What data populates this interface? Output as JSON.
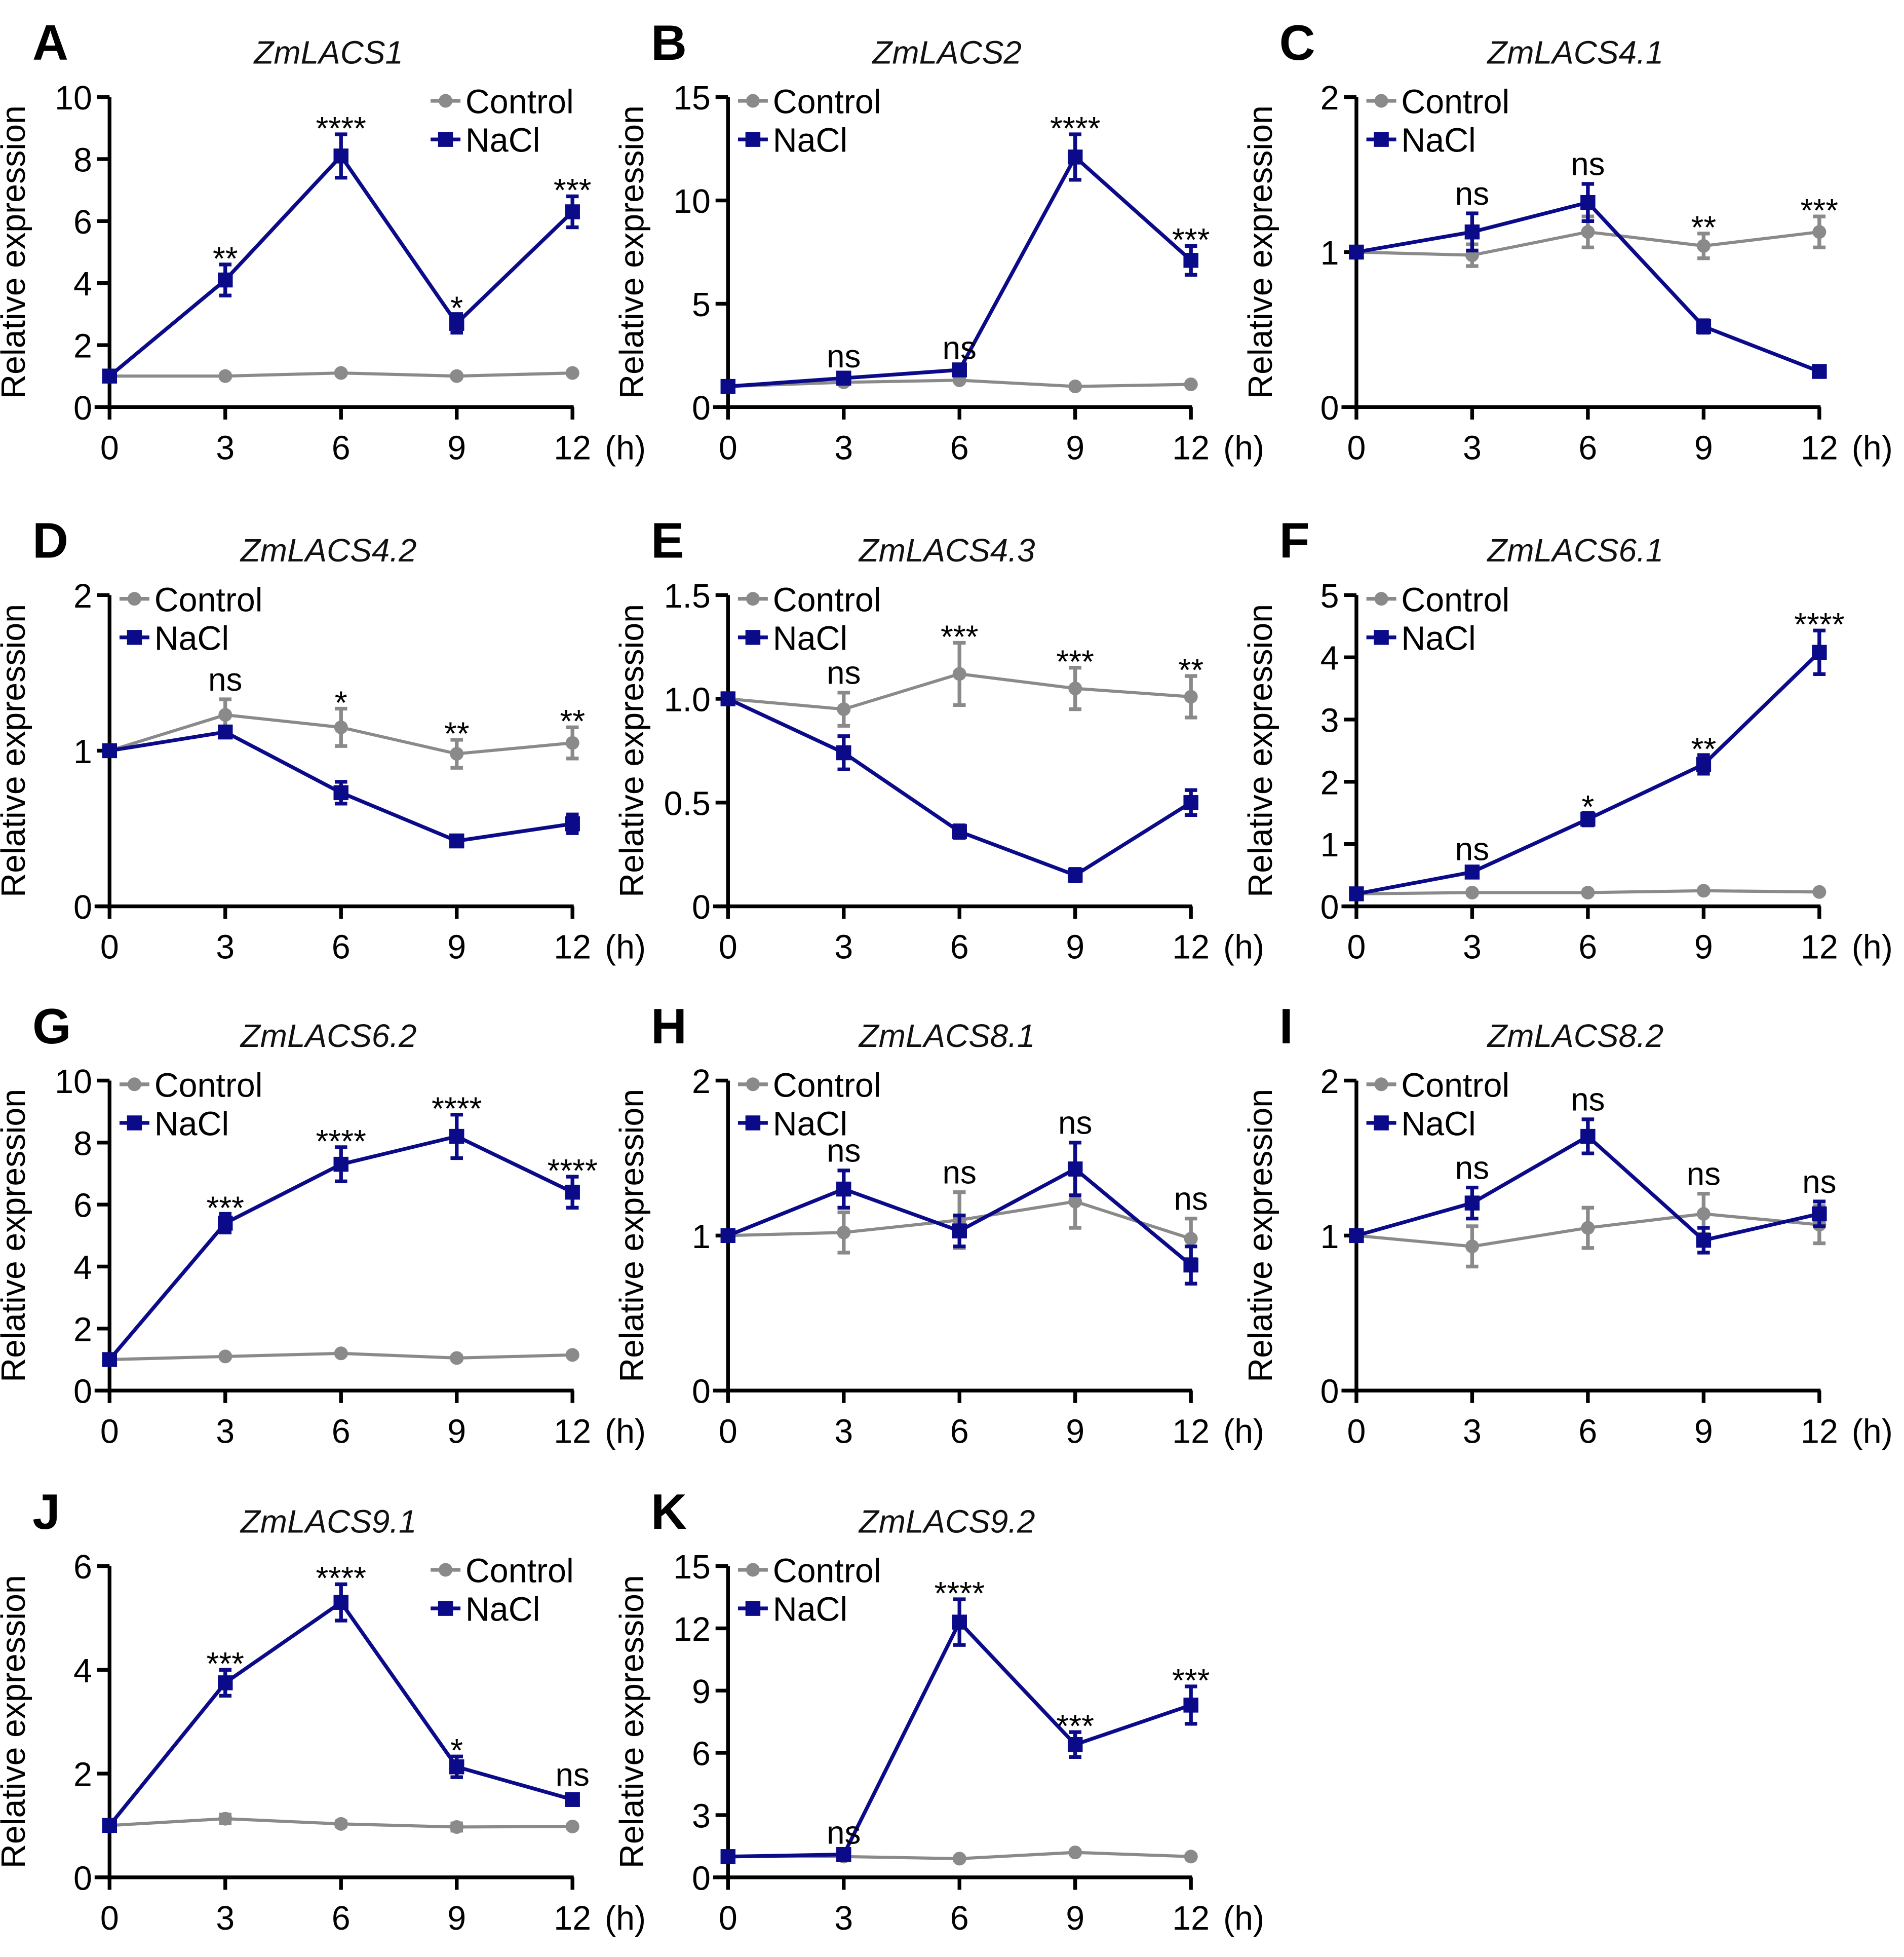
{
  "colors": {
    "control": "#8a8a8a",
    "nacl": "#0b0b8a"
  },
  "chart_data": [
    {
      "type": "line",
      "panel": "A",
      "title": "ZmLACS1",
      "ylabel": "Relative expression",
      "xunit": "(h)",
      "x": [
        0,
        3,
        6,
        9,
        12
      ],
      "ylim": [
        0,
        10
      ],
      "yticks": [
        "0",
        "2",
        "4",
        "6",
        "8",
        "10"
      ],
      "legend": "top-right",
      "series": [
        {
          "name": "Control",
          "values": [
            1,
            1,
            1.1,
            1,
            1.1
          ],
          "err": [
            0,
            0.05,
            0.05,
            0.05,
            0.05
          ]
        },
        {
          "name": "NaCl",
          "values": [
            1,
            4.1,
            8.1,
            2.7,
            6.3
          ],
          "err": [
            0,
            0.5,
            0.7,
            0.3,
            0.5
          ]
        }
      ],
      "sig": [
        "",
        "**",
        "****",
        "*",
        "***"
      ]
    },
    {
      "type": "line",
      "panel": "B",
      "title": "ZmLACS2",
      "ylabel": "Relative expression",
      "xunit": "(h)",
      "x": [
        0,
        3,
        6,
        9,
        12
      ],
      "ylim": [
        0,
        15
      ],
      "yticks": [
        "0",
        "5",
        "10",
        "15"
      ],
      "legend": "top-left",
      "series": [
        {
          "name": "Control",
          "values": [
            1,
            1.2,
            1.3,
            1,
            1.1
          ],
          "err": [
            0,
            0.05,
            0.05,
            0.05,
            0.05
          ]
        },
        {
          "name": "NaCl",
          "values": [
            1,
            1.4,
            1.8,
            12.1,
            7.1
          ],
          "err": [
            0,
            0.1,
            0.1,
            1.1,
            0.7
          ]
        }
      ],
      "sig": [
        "",
        "ns",
        "ns",
        "****",
        "***"
      ]
    },
    {
      "type": "line",
      "panel": "C",
      "title": "ZmLACS4.1",
      "ylabel": "Relative expression",
      "xunit": "(h)",
      "x": [
        0,
        3,
        6,
        9,
        12
      ],
      "ylim": [
        0,
        2
      ],
      "yticks": [
        "0",
        "1",
        "2"
      ],
      "legend": "top-left",
      "series": [
        {
          "name": "Control",
          "values": [
            1,
            0.98,
            1.13,
            1.04,
            1.13
          ],
          "err": [
            0,
            0.07,
            0.1,
            0.08,
            0.1
          ]
        },
        {
          "name": "NaCl",
          "values": [
            1,
            1.13,
            1.32,
            0.52,
            0.23
          ],
          "err": [
            0,
            0.12,
            0.12,
            0.04,
            0.02
          ]
        }
      ],
      "sig": [
        "",
        "ns",
        "ns",
        "**",
        "***"
      ]
    },
    {
      "type": "line",
      "panel": "D",
      "title": "ZmLACS4.2",
      "ylabel": "Relative expression",
      "xunit": "(h)",
      "x": [
        0,
        3,
        6,
        9,
        12
      ],
      "ylim": [
        0,
        2
      ],
      "yticks": [
        "0",
        "1",
        "2"
      ],
      "legend": "top-left",
      "series": [
        {
          "name": "Control",
          "values": [
            1,
            1.23,
            1.15,
            0.98,
            1.05
          ],
          "err": [
            0,
            0.1,
            0.12,
            0.09,
            0.1
          ]
        },
        {
          "name": "NaCl",
          "values": [
            1,
            1.12,
            0.73,
            0.42,
            0.53
          ],
          "err": [
            0,
            0.03,
            0.07,
            0.03,
            0.06
          ]
        }
      ],
      "sig": [
        "",
        "ns",
        "*",
        "**",
        "**"
      ]
    },
    {
      "type": "line",
      "panel": "E",
      "title": "ZmLACS4.3",
      "ylabel": "Relative expression",
      "xunit": "(h)",
      "x": [
        0,
        3,
        6,
        9,
        12
      ],
      "ylim": [
        0,
        1.5
      ],
      "yticks": [
        "0",
        "0.5",
        "1.0",
        "1.5"
      ],
      "legend": "top-left",
      "series": [
        {
          "name": "Control",
          "values": [
            1,
            0.95,
            1.12,
            1.05,
            1.01
          ],
          "err": [
            0,
            0.08,
            0.15,
            0.1,
            0.1
          ]
        },
        {
          "name": "NaCl",
          "values": [
            1,
            0.74,
            0.36,
            0.15,
            0.5
          ],
          "err": [
            0,
            0.08,
            0.03,
            0.03,
            0.06
          ]
        }
      ],
      "sig": [
        "",
        "ns",
        "***",
        "***",
        "**"
      ]
    },
    {
      "type": "line",
      "panel": "F",
      "title": "ZmLACS6.1",
      "ylabel": "Relative expression",
      "xunit": "(h)",
      "x": [
        0,
        3,
        6,
        9,
        12
      ],
      "ylim": [
        0,
        5
      ],
      "yticks": [
        "0",
        "1",
        "2",
        "3",
        "4",
        "5"
      ],
      "legend": "top-left",
      "series": [
        {
          "name": "Control",
          "values": [
            0.2,
            0.22,
            0.22,
            0.25,
            0.23
          ],
          "err": [
            0,
            0.02,
            0.02,
            0.02,
            0.02
          ]
        },
        {
          "name": "NaCl",
          "values": [
            0.2,
            0.55,
            1.4,
            2.28,
            4.08
          ],
          "err": [
            0,
            0.05,
            0.1,
            0.15,
            0.35
          ]
        }
      ],
      "sig": [
        "",
        "ns",
        "*",
        "**",
        "****"
      ]
    },
    {
      "type": "line",
      "panel": "G",
      "title": "ZmLACS6.2",
      "ylabel": "Relative expression",
      "xunit": "(h)",
      "x": [
        0,
        3,
        6,
        9,
        12
      ],
      "ylim": [
        0,
        10
      ],
      "yticks": [
        "0",
        "2",
        "4",
        "6",
        "8",
        "10"
      ],
      "legend": "top-left",
      "series": [
        {
          "name": "Control",
          "values": [
            1,
            1.1,
            1.2,
            1.05,
            1.15
          ],
          "err": [
            0,
            0.05,
            0.05,
            0.05,
            0.05
          ]
        },
        {
          "name": "NaCl",
          "values": [
            1,
            5.4,
            7.3,
            8.2,
            6.4
          ],
          "err": [
            0,
            0.3,
            0.55,
            0.7,
            0.5
          ]
        }
      ],
      "sig": [
        "",
        "***",
        "****",
        "****",
        "****"
      ]
    },
    {
      "type": "line",
      "panel": "H",
      "title": "ZmLACS8.1",
      "ylabel": "Relative expression",
      "xunit": "(h)",
      "x": [
        0,
        3,
        6,
        9,
        12
      ],
      "ylim": [
        0,
        2
      ],
      "yticks": [
        "0",
        "1",
        "2"
      ],
      "legend": "top-left",
      "series": [
        {
          "name": "Control",
          "values": [
            1,
            1.02,
            1.1,
            1.22,
            0.98
          ],
          "err": [
            0,
            0.13,
            0.18,
            0.17,
            0.13
          ]
        },
        {
          "name": "NaCl",
          "values": [
            1,
            1.3,
            1.03,
            1.43,
            0.81
          ],
          "err": [
            0,
            0.12,
            0.1,
            0.17,
            0.12
          ]
        }
      ],
      "sig": [
        "",
        "ns",
        "ns",
        "ns",
        "ns"
      ]
    },
    {
      "type": "line",
      "panel": "I",
      "title": "ZmLACS8.2",
      "ylabel": "Relative expression",
      "xunit": "(h)",
      "x": [
        0,
        3,
        6,
        9,
        12
      ],
      "ylim": [
        0,
        2
      ],
      "yticks": [
        "0",
        "1",
        "2"
      ],
      "legend": "top-left",
      "series": [
        {
          "name": "Control",
          "values": [
            1,
            0.93,
            1.05,
            1.14,
            1.07
          ],
          "err": [
            0,
            0.13,
            0.13,
            0.13,
            0.12
          ]
        },
        {
          "name": "NaCl",
          "values": [
            1,
            1.21,
            1.64,
            0.97,
            1.14
          ],
          "err": [
            0,
            0.1,
            0.11,
            0.08,
            0.08
          ]
        }
      ],
      "sig": [
        "",
        "ns",
        "ns",
        "ns",
        "ns"
      ]
    },
    {
      "type": "line",
      "panel": "J",
      "title": "ZmLACS9.1",
      "ylabel": "Relative expression",
      "xunit": "(h)",
      "x": [
        0,
        3,
        6,
        9,
        12
      ],
      "ylim": [
        0,
        6
      ],
      "yticks": [
        "0",
        "2",
        "4",
        "6"
      ],
      "legend": "top-right",
      "series": [
        {
          "name": "Control",
          "values": [
            1,
            1.13,
            1.03,
            0.97,
            0.98
          ],
          "err": [
            0,
            0.08,
            0.05,
            0.07,
            0.03
          ]
        },
        {
          "name": "NaCl",
          "values": [
            1,
            3.75,
            5.3,
            2.13,
            1.5
          ],
          "err": [
            0,
            0.25,
            0.35,
            0.2,
            0.1
          ]
        }
      ],
      "sig": [
        "",
        "***",
        "****",
        "*",
        "ns"
      ]
    },
    {
      "type": "line",
      "panel": "K",
      "title": "ZmLACS9.2",
      "ylabel": "Relative expression",
      "xunit": "(h)",
      "x": [
        0,
        3,
        6,
        9,
        12
      ],
      "ylim": [
        0,
        15
      ],
      "yticks": [
        "0",
        "3",
        "6",
        "9",
        "12",
        "15"
      ],
      "legend": "top-left",
      "series": [
        {
          "name": "Control",
          "values": [
            1,
            1,
            0.9,
            1.2,
            1
          ],
          "err": [
            0,
            0.05,
            0.05,
            0.05,
            0.05
          ]
        },
        {
          "name": "NaCl",
          "values": [
            1,
            1.1,
            12.3,
            6.4,
            8.3
          ],
          "err": [
            0,
            0.1,
            1.1,
            0.6,
            0.9
          ]
        }
      ],
      "sig": [
        "",
        "ns",
        "****",
        "***",
        "***"
      ]
    }
  ]
}
